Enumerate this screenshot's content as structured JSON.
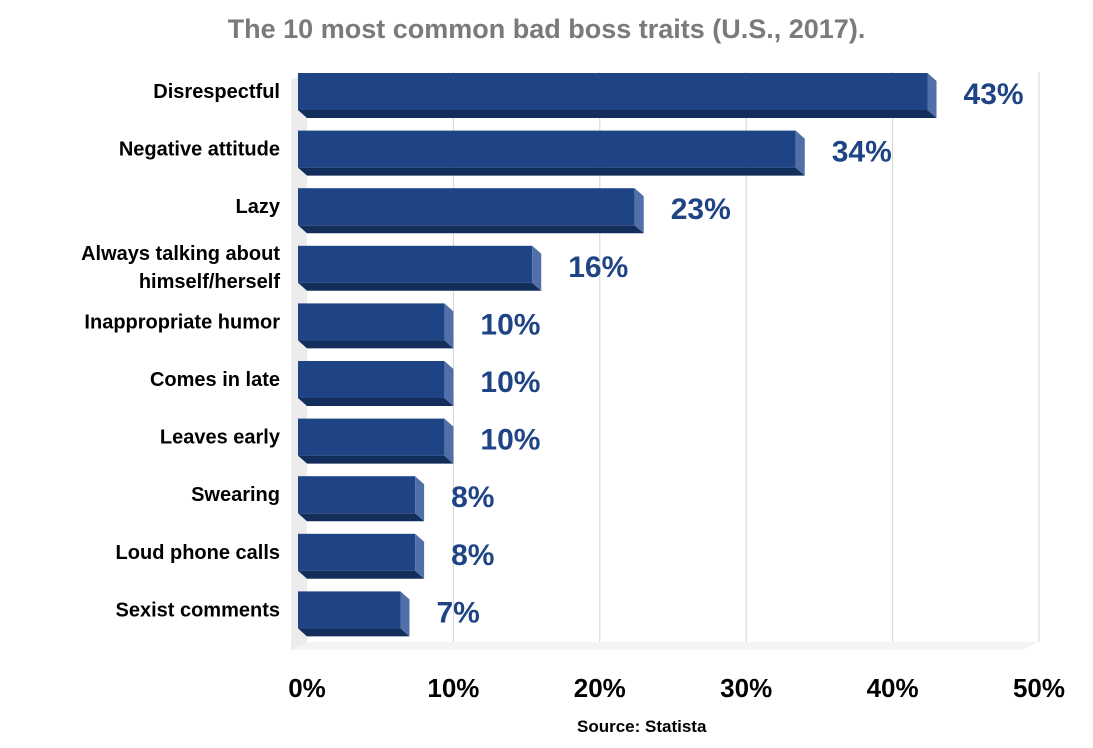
{
  "chart_data": {
    "type": "bar",
    "orientation": "horizontal",
    "title": "The 10 most common bad boss traits (U.S., 2017).",
    "categories": [
      [
        "Disrespectful"
      ],
      [
        "Negative attitude"
      ],
      [
        "Lazy"
      ],
      [
        "Always talking about",
        "himself/herself"
      ],
      [
        "Inappropriate humor"
      ],
      [
        "Comes in late"
      ],
      [
        "Leaves early"
      ],
      [
        "Swearing"
      ],
      [
        "Loud phone calls"
      ],
      [
        "Sexist comments"
      ]
    ],
    "values": [
      43,
      34,
      23,
      16,
      10,
      10,
      10,
      8,
      8,
      7
    ],
    "data_labels": [
      "43%",
      "34%",
      "23%",
      "16%",
      "10%",
      "10%",
      "10%",
      "8%",
      "8%",
      "7%"
    ],
    "xlim": [
      0,
      50
    ],
    "x_ticks": [
      "0%",
      "10%",
      "20%",
      "30%",
      "40%",
      "50%"
    ],
    "grid": true,
    "source": "Source: Statista",
    "colors": {
      "bar_face": "#1f4485",
      "bar_bottom": "#142e5c",
      "bar_side": "#5170a9",
      "label": "#1f4485",
      "title": "#7a7a7a",
      "grid": "#d3d3d3"
    }
  }
}
